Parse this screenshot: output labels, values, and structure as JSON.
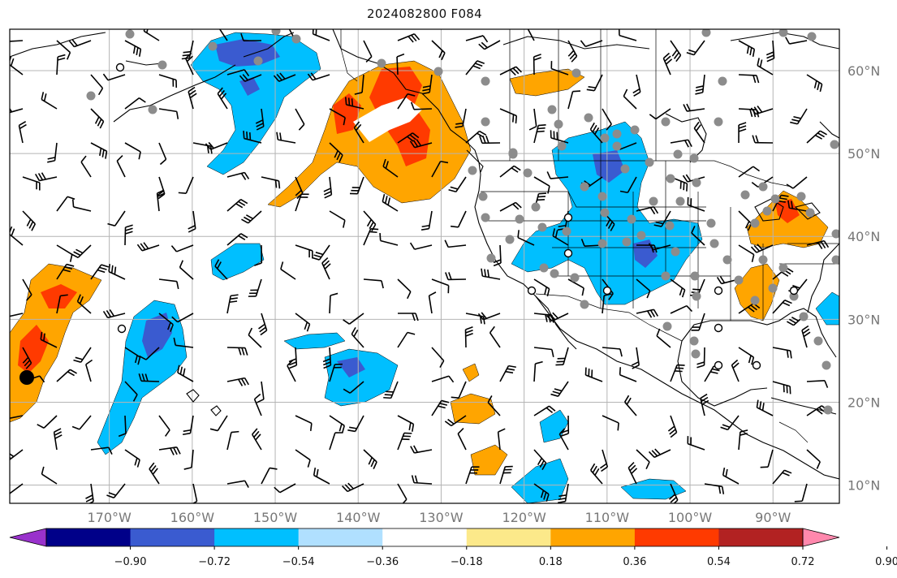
{
  "title": "2024082800 F084",
  "map": {
    "projection": "plate-carree",
    "lon_range": [
      -182,
      -82
    ],
    "lat_range": [
      7.8,
      65
    ],
    "lon_ticks": [
      {
        "value": -170,
        "label": "170°W"
      },
      {
        "value": -160,
        "label": "160°W"
      },
      {
        "value": -150,
        "label": "150°W"
      },
      {
        "value": -140,
        "label": "140°W"
      },
      {
        "value": -130,
        "label": "130°W"
      },
      {
        "value": -120,
        "label": "120°W"
      },
      {
        "value": -110,
        "label": "110°W"
      },
      {
        "value": -100,
        "label": "100°W"
      },
      {
        "value": -90,
        "label": "90°W"
      }
    ],
    "lat_ticks": [
      {
        "value": 60,
        "label": "60°N"
      },
      {
        "value": 50,
        "label": "50°N"
      },
      {
        "value": 40,
        "label": "40°N"
      },
      {
        "value": 30,
        "label": "30°N"
      },
      {
        "value": 20,
        "label": "20°N"
      },
      {
        "value": 10,
        "label": "10°N"
      }
    ],
    "grid": true,
    "features": {
      "coastlines": true,
      "country_borders": true,
      "state_borders": true,
      "wind_barbs": true,
      "station_markers": "grey dots over land, open circles over sea"
    },
    "colors": {
      "grid": "#b4b4b4",
      "coast": "#000000",
      "station_dot": "#8c8c8c",
      "barb": "#000000"
    }
  },
  "colorbar": {
    "orientation": "horizontal",
    "extend": "both",
    "tick_labels": [
      "−0.90",
      "−0.72",
      "−0.54",
      "−0.36",
      "−0.18",
      "0.18",
      "0.36",
      "0.54",
      "0.72",
      "0.90"
    ],
    "bins": [
      {
        "color": "#9932cc"
      },
      {
        "color": "#000089"
      },
      {
        "color": "#3a5bd0"
      },
      {
        "color": "#00bfff"
      },
      {
        "color": "#b0e0ff"
      },
      {
        "color": "#ffffff"
      },
      {
        "color": "#fce98a"
      },
      {
        "color": "#ffa500"
      },
      {
        "color": "#ff3a00"
      },
      {
        "color": "#b22222"
      },
      {
        "color": "#ff88ad"
      }
    ]
  }
}
